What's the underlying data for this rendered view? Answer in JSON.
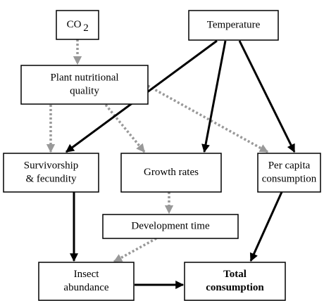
{
  "nodes": [
    {
      "label": [
        "CO"
      ],
      "subscript": "2"
    },
    {
      "label": [
        "Temperature"
      ]
    },
    {
      "label": [
        "Plant nutritional",
        "quality"
      ]
    },
    {
      "label": [
        "Survivorship",
        "& fecundity"
      ]
    },
    {
      "label": [
        "Growth rates"
      ]
    },
    {
      "label": [
        "Per capita",
        "consumption"
      ]
    },
    {
      "label": [
        "Development time"
      ]
    },
    {
      "label": [
        "Insect",
        "abundance"
      ]
    },
    {
      "label": [
        "Total",
        "consumption"
      ]
    }
  ]
}
